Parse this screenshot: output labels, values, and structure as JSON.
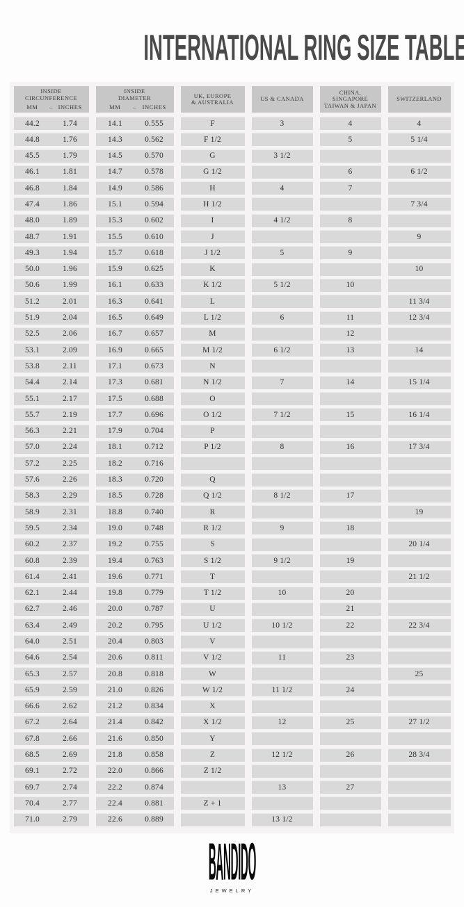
{
  "title": "INTERNATIONAL RING SIZE TABLE",
  "colors": {
    "header_bg": "#c7c7c7",
    "cell_bg": "#d9d9d9",
    "panel_bg": "#f5f3f3",
    "title_color": "#4a4a4a",
    "text": "#2f2f2f"
  },
  "table": {
    "unit_separator": "–",
    "headers": [
      {
        "lines": [
          "INSIDE",
          "CIRCUNFERENCE"
        ],
        "units": [
          "MM",
          "INCHES"
        ]
      },
      {
        "lines": [
          "INSIDE",
          "DIAMETER"
        ],
        "units": [
          "MM",
          "INCHES"
        ]
      },
      {
        "lines": [
          "UK, EUROPE",
          "& AUSTRALIA"
        ]
      },
      {
        "lines": [
          "US & CANADA"
        ]
      },
      {
        "lines": [
          "CHINA,",
          "SINGAPORE",
          "TAIWAN & JAPAN"
        ]
      },
      {
        "lines": [
          "SWITZERLAND"
        ]
      }
    ],
    "rows": [
      [
        "44.2",
        "1.74",
        "14.1",
        "0.555",
        "F",
        "3",
        "4",
        "4"
      ],
      [
        "44.8",
        "1.76",
        "14.3",
        "0.562",
        "F 1/2",
        "",
        "5",
        "5 1/4"
      ],
      [
        "45.5",
        "1.79",
        "14.5",
        "0.570",
        "G",
        "3 1/2",
        "",
        ""
      ],
      [
        "46.1",
        "1.81",
        "14.7",
        "0.578",
        "G 1/2",
        "",
        "6",
        "6 1/2"
      ],
      [
        "46.8",
        "1.84",
        "14.9",
        "0.586",
        "H",
        "4",
        "7",
        ""
      ],
      [
        "47.4",
        "1.86",
        "15.1",
        "0.594",
        "H 1/2",
        "",
        "",
        "7 3/4"
      ],
      [
        "48.0",
        "1.89",
        "15.3",
        "0.602",
        "I",
        "4 1/2",
        "8",
        ""
      ],
      [
        "48.7",
        "1.91",
        "15.5",
        "0.610",
        "J",
        "",
        "",
        "9"
      ],
      [
        "49.3",
        "1.94",
        "15.7",
        "0.618",
        "J 1/2",
        "5",
        "9",
        ""
      ],
      [
        "50.0",
        "1.96",
        "15.9",
        "0.625",
        "K",
        "",
        "",
        "10"
      ],
      [
        "50.6",
        "1.99",
        "16.1",
        "0.633",
        "K 1/2",
        "5 1/2",
        "10",
        ""
      ],
      [
        "51.2",
        "2.01",
        "16.3",
        "0.641",
        "L",
        "",
        "",
        "11 3/4"
      ],
      [
        "51.9",
        "2.04",
        "16.5",
        "0.649",
        "L 1/2",
        "6",
        "11",
        "12 3/4"
      ],
      [
        "52.5",
        "2.06",
        "16.7",
        "0.657",
        "M",
        "",
        "12",
        ""
      ],
      [
        "53.1",
        "2.09",
        "16.9",
        "0.665",
        "M 1/2",
        "6 1/2",
        "13",
        "14"
      ],
      [
        "53.8",
        "2.11",
        "17.1",
        "0.673",
        "N",
        "",
        "",
        ""
      ],
      [
        "54.4",
        "2.14",
        "17.3",
        "0.681",
        "N 1/2",
        "7",
        "14",
        "15 1/4"
      ],
      [
        "55.1",
        "2.17",
        "17.5",
        "0.688",
        "O",
        "",
        "",
        ""
      ],
      [
        "55.7",
        "2.19",
        "17.7",
        "0.696",
        "O 1/2",
        "7 1/2",
        "15",
        "16 1/4"
      ],
      [
        "56.3",
        "2.21",
        "17.9",
        "0.704",
        "P",
        "",
        "",
        ""
      ],
      [
        "57.0",
        "2.24",
        "18.1",
        "0.712",
        "P 1/2",
        "8",
        "16",
        "17 3/4"
      ],
      [
        "57.2",
        "2.25",
        "18.2",
        "0.716",
        "",
        "",
        "",
        ""
      ],
      [
        "57.6",
        "2.26",
        "18.3",
        "0.720",
        "Q",
        "",
        "",
        ""
      ],
      [
        "58.3",
        "2.29",
        "18.5",
        "0.728",
        "Q 1/2",
        "8 1/2",
        "17",
        ""
      ],
      [
        "58.9",
        "2.31",
        "18.8",
        "0.740",
        "R",
        "",
        "",
        "19"
      ],
      [
        "59.5",
        "2.34",
        "19.0",
        "0.748",
        "R 1/2",
        "9",
        "18",
        ""
      ],
      [
        "60.2",
        "2.37",
        "19.2",
        "0.755",
        "S",
        "",
        "",
        "20 1/4"
      ],
      [
        "60.8",
        "2.39",
        "19.4",
        "0.763",
        "S 1/2",
        "9 1/2",
        "19",
        ""
      ],
      [
        "61.4",
        "2.41",
        "19.6",
        "0.771",
        "T",
        "",
        "",
        "21 1/2"
      ],
      [
        "62.1",
        "2.44",
        "19.8",
        "0.779",
        "T 1/2",
        "10",
        "20",
        ""
      ],
      [
        "62.7",
        "2.46",
        "20.0",
        "0.787",
        "U",
        "",
        "21",
        ""
      ],
      [
        "63.4",
        "2.49",
        "20.2",
        "0.795",
        "U 1/2",
        "10 1/2",
        "22",
        "22 3/4"
      ],
      [
        "64.0",
        "2.51",
        "20.4",
        "0.803",
        "V",
        "",
        "",
        ""
      ],
      [
        "64.6",
        "2.54",
        "20.6",
        "0.811",
        "V 1/2",
        "11",
        "23",
        ""
      ],
      [
        "65.3",
        "2.57",
        "20.8",
        "0.818",
        "W",
        "",
        "",
        "25"
      ],
      [
        "65.9",
        "2.59",
        "21.0",
        "0.826",
        "W 1/2",
        "11 1/2",
        "24",
        ""
      ],
      [
        "66.6",
        "2.62",
        "21.2",
        "0.834",
        "X",
        "",
        "",
        ""
      ],
      [
        "67.2",
        "2.64",
        "21.4",
        "0.842",
        "X 1/2",
        "12",
        "25",
        "27 1/2"
      ],
      [
        "67.8",
        "2.66",
        "21.6",
        "0.850",
        "Y",
        "",
        "",
        ""
      ],
      [
        "68.5",
        "2.69",
        "21.8",
        "0.858",
        "Z",
        "12 1/2",
        "26",
        "28 3/4"
      ],
      [
        "69.1",
        "2.72",
        "22.0",
        "0.866",
        "Z 1/2",
        "",
        "",
        ""
      ],
      [
        "69.7",
        "2.74",
        "22.2",
        "0.874",
        "",
        "13",
        "27",
        ""
      ],
      [
        "70.4",
        "2.77",
        "22.4",
        "0.881",
        "Z + 1",
        "",
        "",
        ""
      ],
      [
        "71.0",
        "2.79",
        "22.6",
        "0.889",
        "",
        "13 1/2",
        "",
        ""
      ]
    ]
  },
  "footer": {
    "brand": "BANDIDO",
    "sub": "JEWELRY"
  }
}
